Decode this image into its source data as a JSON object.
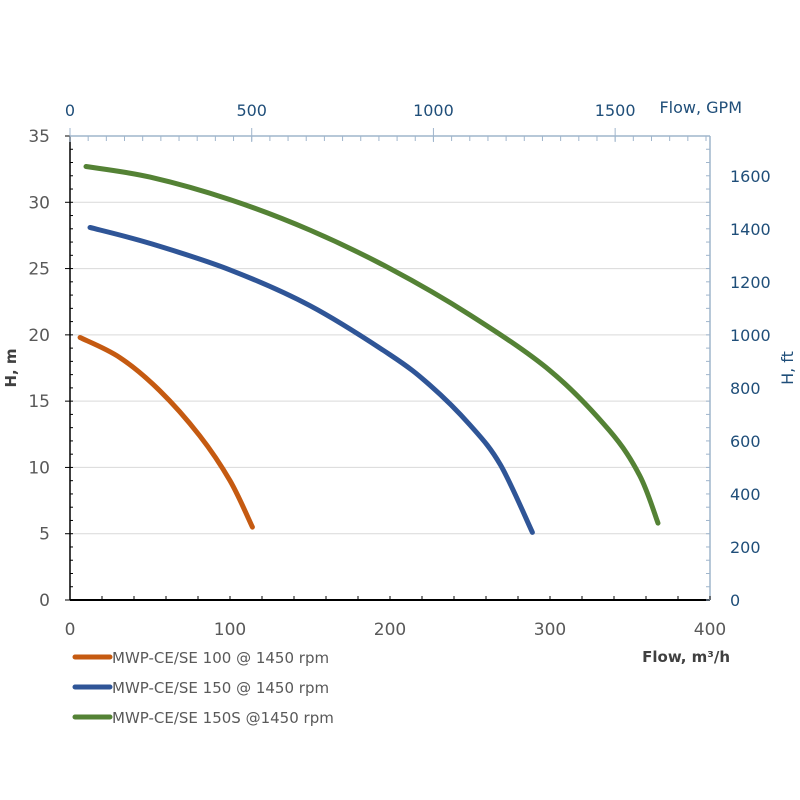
{
  "chart_data": {
    "type": "line",
    "xlabel": "Flow,  m³/h",
    "ylabel": "H, m",
    "x2label": "Flow, GPM",
    "y2label": "H, ft",
    "xlim": [
      0,
      400
    ],
    "ylim": [
      0,
      35
    ],
    "x2lim": [
      0,
      1761
    ],
    "y2lim": [
      0,
      1750
    ],
    "xticks": [
      0,
      100,
      200,
      300,
      400
    ],
    "yticks": [
      0,
      5,
      10,
      15,
      20,
      25,
      30,
      35
    ],
    "x2ticks": [
      0,
      500,
      1000,
      1500
    ],
    "y2ticks": [
      0,
      200,
      400,
      600,
      800,
      1000,
      1200,
      1400,
      1600
    ],
    "grid": "horizontal",
    "legend": "bottom-left",
    "series": [
      {
        "name": "MWP-CE/SE 100 @ 1450 rpm",
        "color": "#c55a11",
        "x": [
          6.3,
          31,
          56,
          81,
          100,
          114
        ],
        "y": [
          19.8,
          18.3,
          15.8,
          12.4,
          9.0,
          5.5
        ]
      },
      {
        "name": "MWP-CE/SE 150 @ 1450 rpm",
        "color": "#2f5597",
        "x": [
          12.5,
          50,
          100,
          150,
          200,
          225,
          250,
          269,
          289
        ],
        "y": [
          28.1,
          26.9,
          24.9,
          22.2,
          18.5,
          16.2,
          13.2,
          10.2,
          5.1
        ]
      },
      {
        "name": "MWP-CE/SE 150S @1450 rpm",
        "color": "#548235",
        "x": [
          10,
          50,
          100,
          150,
          200,
          250,
          300,
          337,
          356,
          367.5
        ],
        "y": [
          32.7,
          31.9,
          30.2,
          27.9,
          25.0,
          21.5,
          17.3,
          12.8,
          9.4,
          5.8
        ]
      }
    ]
  }
}
